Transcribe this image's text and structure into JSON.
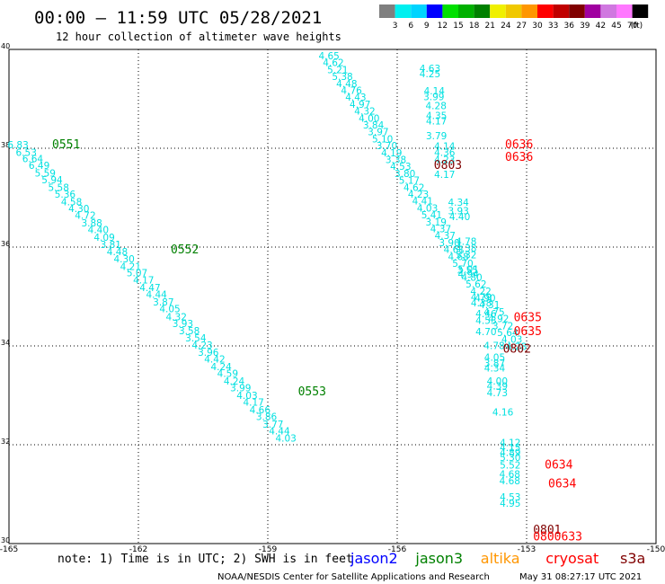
{
  "header": {
    "title": "00:00 – 11:59 UTC 05/28/2021",
    "subtitle": "12 hour collection of altimeter wave heights"
  },
  "colorbar": {
    "unit": "(ft)",
    "labels": [
      "3",
      "6",
      "9",
      "12",
      "15",
      "18",
      "21",
      "24",
      "27",
      "30",
      "33",
      "36",
      "39",
      "42",
      "45",
      "70"
    ],
    "colors": [
      "#7f7f7f",
      "#00f0f0",
      "#00d4ff",
      "#0000ff",
      "#00e000",
      "#00b000",
      "#008000",
      "#f0f000",
      "#f0c800",
      "#ff9600",
      "#ff0000",
      "#c00000",
      "#800000",
      "#a000a0",
      "#d078e0",
      "#ff78ff",
      "#000000"
    ]
  },
  "footer": {
    "note": "note: 1) Time is in UTC; 2) SWH is in feet",
    "credit": "NOAA/NESDIS Center for Satellite Applications and Research",
    "timestamp": "May 31 08:27:17 UTC 2021"
  },
  "legend": [
    {
      "name": "jason2",
      "color": "#0000ff"
    },
    {
      "name": "jason3",
      "color": "#008000"
    },
    {
      "name": "altika",
      "color": "#ff9600"
    },
    {
      "name": "cryosat",
      "color": "#ff0000"
    },
    {
      "name": "s3a",
      "color": "#800000"
    }
  ],
  "chart_data": {
    "type": "scatter",
    "xlim": [
      -165,
      -150
    ],
    "ylim": [
      30,
      40
    ],
    "x_ticks": [
      "-165",
      "-162",
      "-159",
      "-156",
      "-153",
      "-150"
    ],
    "y_ticks": [
      "30",
      "32",
      "34",
      "36",
      "38",
      "40"
    ],
    "grid": true,
    "value_color": "#00e0e0",
    "tracks": [
      {
        "pts": [
          [
            -164.79,
            38.0,
            "6.83"
          ],
          [
            -164.6,
            37.85,
            "6.53"
          ],
          [
            -164.45,
            37.72,
            "6.64"
          ],
          [
            -164.3,
            37.58,
            "6.49"
          ],
          [
            -164.16,
            37.43,
            "5.59"
          ],
          [
            -164.0,
            37.29,
            "5.94"
          ],
          [
            -163.85,
            37.14,
            "5.58"
          ],
          [
            -163.7,
            37.0,
            "5.36"
          ],
          [
            -163.55,
            36.85,
            "4.58"
          ],
          [
            -163.38,
            36.71,
            "4.30"
          ],
          [
            -163.23,
            36.57,
            "4.72"
          ],
          [
            -163.08,
            36.42,
            "3.88"
          ],
          [
            -162.93,
            36.28,
            "4.40"
          ],
          [
            -162.79,
            36.13,
            "4.09"
          ],
          [
            -162.64,
            35.98,
            "3.81"
          ],
          [
            -162.49,
            35.84,
            "4.48"
          ],
          [
            -162.33,
            35.69,
            "4.30"
          ],
          [
            -162.18,
            35.54,
            "4.21"
          ],
          [
            -162.03,
            35.41,
            "5.07"
          ],
          [
            -161.88,
            35.26,
            "4.17"
          ],
          [
            -161.73,
            35.11,
            "4.47"
          ],
          [
            -161.58,
            34.97,
            "4.44"
          ],
          [
            -161.42,
            34.82,
            "3.87"
          ],
          [
            -161.27,
            34.68,
            "4.05"
          ],
          [
            -161.12,
            34.52,
            "4.32"
          ],
          [
            -160.97,
            34.38,
            "3.93"
          ],
          [
            -160.82,
            34.24,
            "3.58"
          ],
          [
            -160.67,
            34.09,
            "3.54"
          ],
          [
            -160.52,
            33.95,
            "4.23"
          ],
          [
            -160.38,
            33.8,
            "3.96"
          ],
          [
            -160.23,
            33.66,
            "4.42"
          ],
          [
            -160.08,
            33.51,
            "4.24"
          ],
          [
            -159.93,
            33.37,
            "4.59"
          ],
          [
            -159.78,
            33.22,
            "4.24"
          ],
          [
            -159.63,
            33.08,
            "3.99"
          ],
          [
            -159.48,
            32.93,
            "4.03"
          ],
          [
            -159.33,
            32.79,
            "4.17"
          ],
          [
            -159.18,
            32.64,
            "4.66"
          ],
          [
            -159.03,
            32.5,
            "3.86"
          ],
          [
            -158.88,
            32.35,
            "3.77"
          ],
          [
            -158.73,
            32.21,
            "4.44"
          ],
          [
            -158.58,
            32.06,
            "4.03"
          ]
        ],
        "labels": [
          {
            "text": "0551",
            "color": "#008000",
            "x": -164.0,
            "y": 38.0
          },
          {
            "text": "0552",
            "color": "#008000",
            "x": -161.25,
            "y": 35.87
          },
          {
            "text": "0553",
            "color": "#008000",
            "x": -158.3,
            "y": 33.0
          }
        ]
      },
      {
        "pts": [
          [
            -157.58,
            39.8,
            "4.65"
          ],
          [
            -157.48,
            39.66,
            "4.62"
          ],
          [
            -157.38,
            39.52,
            "5.21"
          ],
          [
            -157.27,
            39.38,
            "5.38"
          ],
          [
            -157.17,
            39.24,
            "4.48"
          ],
          [
            -157.06,
            39.1,
            "4.76"
          ],
          [
            -156.96,
            38.96,
            "4.43"
          ],
          [
            -156.86,
            38.82,
            "4.97"
          ],
          [
            -156.75,
            38.68,
            "4.32"
          ],
          [
            -156.65,
            38.54,
            "4.00"
          ],
          [
            -156.55,
            38.4,
            "3.84"
          ],
          [
            -156.44,
            38.26,
            "3.97"
          ],
          [
            -156.34,
            38.12,
            "5.10"
          ],
          [
            -156.24,
            37.98,
            "3.70"
          ],
          [
            -156.13,
            37.84,
            "4.19"
          ],
          [
            -156.03,
            37.7,
            "3.38"
          ],
          [
            -155.92,
            37.56,
            "4.53"
          ],
          [
            -155.82,
            37.42,
            "3.80"
          ],
          [
            -155.72,
            37.28,
            "5.17"
          ],
          [
            -155.61,
            37.14,
            "4.62"
          ],
          [
            -155.51,
            37.0,
            "4.23"
          ],
          [
            -155.41,
            36.86,
            "4.41"
          ],
          [
            -155.3,
            36.72,
            "4.03"
          ],
          [
            -155.2,
            36.58,
            "5.41"
          ],
          [
            -155.1,
            36.44,
            "3.19"
          ],
          [
            -154.99,
            36.3,
            "4.37"
          ],
          [
            -154.89,
            36.16,
            "4.37"
          ],
          [
            -154.79,
            36.02,
            "3.90"
          ],
          [
            -154.68,
            35.88,
            "4.61"
          ],
          [
            -154.58,
            35.74,
            "4.68"
          ],
          [
            -154.48,
            35.6,
            "5.70"
          ],
          [
            -154.37,
            35.46,
            "3.55"
          ],
          [
            -154.27,
            35.32,
            "4.80"
          ],
          [
            -154.17,
            35.18,
            "5.62"
          ],
          [
            -154.06,
            35.04,
            "4.22"
          ],
          [
            -153.96,
            34.9,
            "4.90"
          ],
          [
            -153.86,
            34.76,
            "4.31"
          ],
          [
            -153.75,
            34.62,
            "4.75"
          ],
          [
            -153.65,
            34.48,
            "4.92"
          ],
          [
            -153.55,
            34.34,
            "3.72"
          ],
          [
            -153.44,
            34.2,
            "5.64"
          ],
          [
            -153.34,
            34.06,
            "4.03"
          ],
          [
            -153.24,
            33.92,
            "4.28"
          ]
        ],
        "labels": [
          {
            "text": "0803",
            "color": "#800000",
            "x": -155.15,
            "y": 37.58
          },
          {
            "text": "0802",
            "color": "#800000",
            "x": -153.55,
            "y": 33.86
          },
          {
            "text": "0801",
            "color": "#800000",
            "x": -152.85,
            "y": 30.2
          }
        ]
      },
      {
        "pts": [
          [
            -155.24,
            39.55,
            "4.63"
          ],
          [
            -155.24,
            39.44,
            "4.25"
          ],
          [
            -155.14,
            39.09,
            "4.14"
          ],
          [
            -155.15,
            38.97,
            "3.99"
          ],
          [
            -155.1,
            38.79,
            "4.28"
          ],
          [
            -155.09,
            38.59,
            "4.35"
          ],
          [
            -155.09,
            38.48,
            "4.17"
          ],
          [
            -155.09,
            38.18,
            "3.79"
          ],
          [
            -154.9,
            37.97,
            "4.14"
          ],
          [
            -154.9,
            37.85,
            "4.36"
          ],
          [
            -154.9,
            37.7,
            "4.23"
          ],
          [
            -154.9,
            37.4,
            "4.17"
          ],
          [
            -154.58,
            36.84,
            "4.34"
          ],
          [
            -154.58,
            36.66,
            "3.93"
          ],
          [
            -154.55,
            36.55,
            "4.40"
          ],
          [
            -154.4,
            36.05,
            "4.78"
          ],
          [
            -154.4,
            35.91,
            "4.38"
          ],
          [
            -154.4,
            35.77,
            "5.32"
          ],
          [
            -154.35,
            35.48,
            "5.01"
          ],
          [
            -154.35,
            35.38,
            "4.94"
          ],
          [
            -154.05,
            34.92,
            "4.79"
          ],
          [
            -154.05,
            34.8,
            "4.38"
          ],
          [
            -153.94,
            34.58,
            "4.46"
          ],
          [
            -153.94,
            34.45,
            "4.53"
          ],
          [
            -153.94,
            34.22,
            "4.70"
          ],
          [
            -153.75,
            33.94,
            "4.78"
          ],
          [
            -153.74,
            33.7,
            "4.05"
          ],
          [
            -153.74,
            33.58,
            "3.87"
          ],
          [
            -153.74,
            33.48,
            "4.34"
          ],
          [
            -153.68,
            33.22,
            "4.00"
          ],
          [
            -153.68,
            33.12,
            "4.39"
          ],
          [
            -153.68,
            32.98,
            "4.73"
          ],
          [
            -153.55,
            32.59,
            "4.16"
          ],
          [
            -153.38,
            31.97,
            "4.12"
          ],
          [
            -153.38,
            31.87,
            "4.15"
          ],
          [
            -153.38,
            31.77,
            "4.89"
          ],
          [
            -153.38,
            31.67,
            "5.30"
          ],
          [
            -153.38,
            31.52,
            "5.52"
          ],
          [
            -153.39,
            31.34,
            "4.68"
          ],
          [
            -153.39,
            31.2,
            "4.68"
          ],
          [
            -153.38,
            30.87,
            "4.53"
          ],
          [
            -153.38,
            30.75,
            "4.95"
          ]
        ],
        "labels": [
          {
            "text": "0636",
            "color": "#ff0000",
            "x": -153.5,
            "y": 38.0
          },
          {
            "text": "0636",
            "color": "#ff0000",
            "x": -153.5,
            "y": 37.75
          },
          {
            "text": "0635",
            "color": "#ff0000",
            "x": -153.3,
            "y": 34.5
          },
          {
            "text": "0635",
            "color": "#ff0000",
            "x": -153.3,
            "y": 34.22
          },
          {
            "text": "0634",
            "color": "#ff0000",
            "x": -152.58,
            "y": 31.52
          },
          {
            "text": "0634",
            "color": "#ff0000",
            "x": -152.5,
            "y": 31.14
          },
          {
            "text": "0800633",
            "color": "#ff0000",
            "x": -152.85,
            "y": 30.06
          }
        ]
      }
    ]
  }
}
